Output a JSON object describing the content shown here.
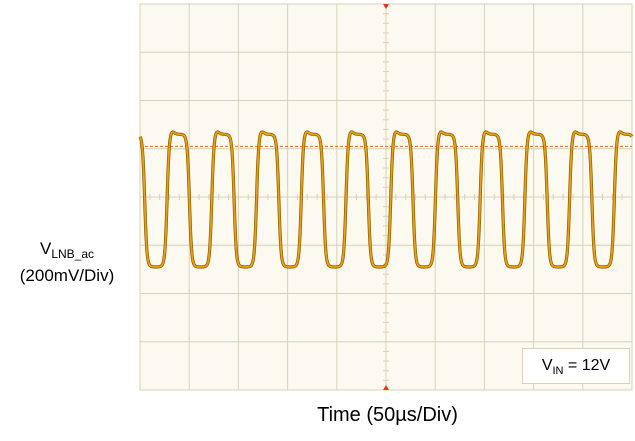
{
  "chart_data": {
    "type": "line",
    "subtype": "oscilloscope-trace",
    "xlabel": "Time (50µs/Div)",
    "ylabel_main": "V",
    "ylabel_sub": "LNB_ac",
    "ylabel_scale": "(200mV/Div)",
    "annotation": {
      "main": "V",
      "sub": "IN",
      "rest": " = 12V"
    },
    "x_divisions": 10,
    "y_divisions": 8,
    "xlim_div": [
      0,
      10
    ],
    "ylim_div": [
      -4,
      4
    ],
    "time_per_div_us": 50,
    "volts_per_div_mv": 200,
    "series": [
      {
        "waveform": "square-like with rounded edges",
        "frequency_khz": 22,
        "period_div": 0.909,
        "cycles_visible": 11,
        "amplitude_pp_div": 2.75,
        "high_level_div": 1.3,
        "low_level_div": -1.45,
        "color": "#e8a010"
      }
    ],
    "trigger_level_div": 1.05,
    "colors": {
      "grid_background": "#fbf9f0",
      "grid_line": "#d8d2b6",
      "trace": "#e8a010",
      "trace_edge": "#8a5a00",
      "trigger_line": "#e06a2a",
      "marker": "#e03a10"
    }
  }
}
